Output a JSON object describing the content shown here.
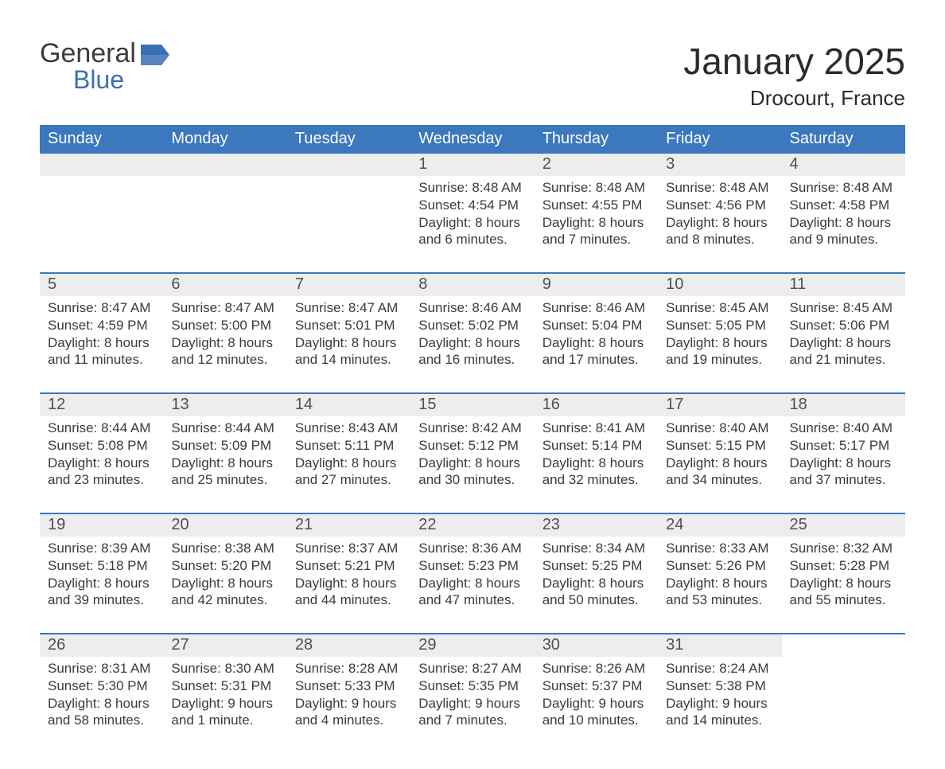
{
  "brand": {
    "word1": "General",
    "word2": "Blue"
  },
  "title": "January 2025",
  "location": "Drocourt, France",
  "colors": {
    "header_bg": "#3b78bd",
    "header_text": "#ffffff",
    "daynum_bg": "#ededed",
    "week_border": "#3b78bd",
    "body_text": "#3b3b3b",
    "brand_blue": "#3b6fb6",
    "page_bg": "#ffffff"
  },
  "fonts": {
    "title_size_pt": 34,
    "location_size_pt": 20,
    "header_size_pt": 15,
    "daynum_size_pt": 15,
    "body_size_pt": 13
  },
  "layout": {
    "columns": 7,
    "rows": 5,
    "first_weekday_index": 3
  },
  "day_names": [
    "Sunday",
    "Monday",
    "Tuesday",
    "Wednesday",
    "Thursday",
    "Friday",
    "Saturday"
  ],
  "weeks": [
    [
      {},
      {},
      {},
      {
        "n": "1",
        "sunrise": "Sunrise: 8:48 AM",
        "sunset": "Sunset: 4:54 PM",
        "daylight1": "Daylight: 8 hours",
        "daylight2": "and 6 minutes."
      },
      {
        "n": "2",
        "sunrise": "Sunrise: 8:48 AM",
        "sunset": "Sunset: 4:55 PM",
        "daylight1": "Daylight: 8 hours",
        "daylight2": "and 7 minutes."
      },
      {
        "n": "3",
        "sunrise": "Sunrise: 8:48 AM",
        "sunset": "Sunset: 4:56 PM",
        "daylight1": "Daylight: 8 hours",
        "daylight2": "and 8 minutes."
      },
      {
        "n": "4",
        "sunrise": "Sunrise: 8:48 AM",
        "sunset": "Sunset: 4:58 PM",
        "daylight1": "Daylight: 8 hours",
        "daylight2": "and 9 minutes."
      }
    ],
    [
      {
        "n": "5",
        "sunrise": "Sunrise: 8:47 AM",
        "sunset": "Sunset: 4:59 PM",
        "daylight1": "Daylight: 8 hours",
        "daylight2": "and 11 minutes."
      },
      {
        "n": "6",
        "sunrise": "Sunrise: 8:47 AM",
        "sunset": "Sunset: 5:00 PM",
        "daylight1": "Daylight: 8 hours",
        "daylight2": "and 12 minutes."
      },
      {
        "n": "7",
        "sunrise": "Sunrise: 8:47 AM",
        "sunset": "Sunset: 5:01 PM",
        "daylight1": "Daylight: 8 hours",
        "daylight2": "and 14 minutes."
      },
      {
        "n": "8",
        "sunrise": "Sunrise: 8:46 AM",
        "sunset": "Sunset: 5:02 PM",
        "daylight1": "Daylight: 8 hours",
        "daylight2": "and 16 minutes."
      },
      {
        "n": "9",
        "sunrise": "Sunrise: 8:46 AM",
        "sunset": "Sunset: 5:04 PM",
        "daylight1": "Daylight: 8 hours",
        "daylight2": "and 17 minutes."
      },
      {
        "n": "10",
        "sunrise": "Sunrise: 8:45 AM",
        "sunset": "Sunset: 5:05 PM",
        "daylight1": "Daylight: 8 hours",
        "daylight2": "and 19 minutes."
      },
      {
        "n": "11",
        "sunrise": "Sunrise: 8:45 AM",
        "sunset": "Sunset: 5:06 PM",
        "daylight1": "Daylight: 8 hours",
        "daylight2": "and 21 minutes."
      }
    ],
    [
      {
        "n": "12",
        "sunrise": "Sunrise: 8:44 AM",
        "sunset": "Sunset: 5:08 PM",
        "daylight1": "Daylight: 8 hours",
        "daylight2": "and 23 minutes."
      },
      {
        "n": "13",
        "sunrise": "Sunrise: 8:44 AM",
        "sunset": "Sunset: 5:09 PM",
        "daylight1": "Daylight: 8 hours",
        "daylight2": "and 25 minutes."
      },
      {
        "n": "14",
        "sunrise": "Sunrise: 8:43 AM",
        "sunset": "Sunset: 5:11 PM",
        "daylight1": "Daylight: 8 hours",
        "daylight2": "and 27 minutes."
      },
      {
        "n": "15",
        "sunrise": "Sunrise: 8:42 AM",
        "sunset": "Sunset: 5:12 PM",
        "daylight1": "Daylight: 8 hours",
        "daylight2": "and 30 minutes."
      },
      {
        "n": "16",
        "sunrise": "Sunrise: 8:41 AM",
        "sunset": "Sunset: 5:14 PM",
        "daylight1": "Daylight: 8 hours",
        "daylight2": "and 32 minutes."
      },
      {
        "n": "17",
        "sunrise": "Sunrise: 8:40 AM",
        "sunset": "Sunset: 5:15 PM",
        "daylight1": "Daylight: 8 hours",
        "daylight2": "and 34 minutes."
      },
      {
        "n": "18",
        "sunrise": "Sunrise: 8:40 AM",
        "sunset": "Sunset: 5:17 PM",
        "daylight1": "Daylight: 8 hours",
        "daylight2": "and 37 minutes."
      }
    ],
    [
      {
        "n": "19",
        "sunrise": "Sunrise: 8:39 AM",
        "sunset": "Sunset: 5:18 PM",
        "daylight1": "Daylight: 8 hours",
        "daylight2": "and 39 minutes."
      },
      {
        "n": "20",
        "sunrise": "Sunrise: 8:38 AM",
        "sunset": "Sunset: 5:20 PM",
        "daylight1": "Daylight: 8 hours",
        "daylight2": "and 42 minutes."
      },
      {
        "n": "21",
        "sunrise": "Sunrise: 8:37 AM",
        "sunset": "Sunset: 5:21 PM",
        "daylight1": "Daylight: 8 hours",
        "daylight2": "and 44 minutes."
      },
      {
        "n": "22",
        "sunrise": "Sunrise: 8:36 AM",
        "sunset": "Sunset: 5:23 PM",
        "daylight1": "Daylight: 8 hours",
        "daylight2": "and 47 minutes."
      },
      {
        "n": "23",
        "sunrise": "Sunrise: 8:34 AM",
        "sunset": "Sunset: 5:25 PM",
        "daylight1": "Daylight: 8 hours",
        "daylight2": "and 50 minutes."
      },
      {
        "n": "24",
        "sunrise": "Sunrise: 8:33 AM",
        "sunset": "Sunset: 5:26 PM",
        "daylight1": "Daylight: 8 hours",
        "daylight2": "and 53 minutes."
      },
      {
        "n": "25",
        "sunrise": "Sunrise: 8:32 AM",
        "sunset": "Sunset: 5:28 PM",
        "daylight1": "Daylight: 8 hours",
        "daylight2": "and 55 minutes."
      }
    ],
    [
      {
        "n": "26",
        "sunrise": "Sunrise: 8:31 AM",
        "sunset": "Sunset: 5:30 PM",
        "daylight1": "Daylight: 8 hours",
        "daylight2": "and 58 minutes."
      },
      {
        "n": "27",
        "sunrise": "Sunrise: 8:30 AM",
        "sunset": "Sunset: 5:31 PM",
        "daylight1": "Daylight: 9 hours",
        "daylight2": "and 1 minute."
      },
      {
        "n": "28",
        "sunrise": "Sunrise: 8:28 AM",
        "sunset": "Sunset: 5:33 PM",
        "daylight1": "Daylight: 9 hours",
        "daylight2": "and 4 minutes."
      },
      {
        "n": "29",
        "sunrise": "Sunrise: 8:27 AM",
        "sunset": "Sunset: 5:35 PM",
        "daylight1": "Daylight: 9 hours",
        "daylight2": "and 7 minutes."
      },
      {
        "n": "30",
        "sunrise": "Sunrise: 8:26 AM",
        "sunset": "Sunset: 5:37 PM",
        "daylight1": "Daylight: 9 hours",
        "daylight2": "and 10 minutes."
      },
      {
        "n": "31",
        "sunrise": "Sunrise: 8:24 AM",
        "sunset": "Sunset: 5:38 PM",
        "daylight1": "Daylight: 9 hours",
        "daylight2": "and 14 minutes."
      },
      {}
    ]
  ]
}
